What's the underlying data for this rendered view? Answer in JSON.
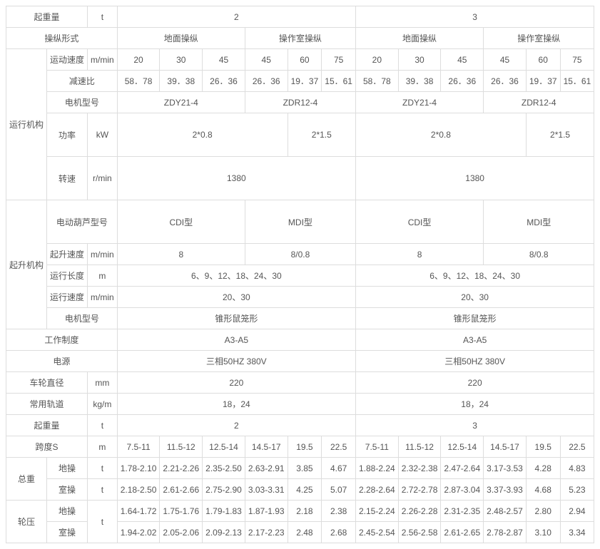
{
  "header": {
    "r1": {
      "c1": "起重量",
      "c2": "t",
      "c3": "2",
      "c4": "3"
    },
    "r2": {
      "c1": "操纵形式",
      "g1": "地面操纵",
      "g2": "操作室操纵",
      "g3": "地面操纵",
      "g4": "操作室操纵"
    }
  },
  "run": {
    "group": "运行机构",
    "speed_label": "运动速度",
    "speed_unit": "m/min",
    "speed": [
      "20",
      "30",
      "45",
      "45",
      "60",
      "75",
      "20",
      "30",
      "45",
      "45",
      "60",
      "75"
    ],
    "gear_label": "减速比",
    "gear": [
      "58．78",
      "39．38",
      "26．36",
      "26．36",
      "19．37",
      "15．61",
      "58．78",
      "39．38",
      "26．36",
      "26．36",
      "19．37",
      "15．61"
    ],
    "motor_label": "电机型号",
    "motor": [
      "ZDY21-4",
      "ZDR12-4",
      "ZDY21-4",
      "ZDR12-4"
    ],
    "kw_label": "功率",
    "kw_unit": "kW",
    "kw": [
      "2*0.8",
      "2*1.5",
      "2*0.8",
      "2*1.5"
    ],
    "rpm_label": "转速",
    "rpm_unit": "r/min",
    "rpm": [
      "1380",
      "1380"
    ]
  },
  "hoist": {
    "group": "起升机构",
    "type_label": "电动葫芦型号",
    "type": [
      "CDI型",
      "MDI型",
      "CDI型",
      "MDI型"
    ],
    "liftspd_label": "起升速度",
    "liftspd_unit": "m/min",
    "liftspd": [
      "8",
      "8/0.8",
      "8",
      "8/0.8"
    ],
    "runlen_label": "运行长度",
    "runlen_unit": "m",
    "runlen": [
      "6、9、12、18、24、30",
      "6、9、12、18、24、30"
    ],
    "runspd_label": "运行速度",
    "runspd_unit": "m/min",
    "runspd": [
      "20、30",
      "20、30"
    ],
    "motor_label": "电机型号",
    "motor": [
      "锥形鼠笼形",
      "锥形鼠笼形"
    ]
  },
  "misc": {
    "duty_label": "工作制度",
    "duty": [
      "A3-A5",
      "A3-A5"
    ],
    "power_label": "电源",
    "power": [
      "三相50HZ 380V",
      "三相50HZ 380V"
    ],
    "wheel_label": "车轮直径",
    "wheel_unit": "mm",
    "wheel": [
      "220",
      "220"
    ],
    "rail_label": "常用轨道",
    "rail_unit": "kg/m",
    "rail": [
      "18，24",
      "18，24"
    ],
    "cap_label": "起重量",
    "cap_unit": "t",
    "cap": [
      "2",
      "3"
    ],
    "span_label": "跨度S",
    "span_unit": "m",
    "span": [
      "7.5-11",
      "11.5-12",
      "12.5-14",
      "14.5-17",
      "19.5",
      "22.5",
      "7.5-11",
      "11.5-12",
      "12.5-14",
      "14.5-17",
      "19.5",
      "22.5"
    ]
  },
  "weight": {
    "group": "总重",
    "ground": "地操",
    "cabin": "室操",
    "unit": "t",
    "g": [
      "1.78-2.10",
      "2.21-2.26",
      "2.35-2.50",
      "2.63-2.91",
      "3.85",
      "4.67",
      "1.88-2.24",
      "2.32-2.38",
      "2.47-2.64",
      "3.17-3.53",
      "4.28",
      "4.83"
    ],
    "c": [
      "2.18-2.50",
      "2.61-2.66",
      "2.75-2.90",
      "3.03-3.31",
      "4.25",
      "5.07",
      "2.28-2.64",
      "2.72-2.78",
      "2.87-3.04",
      "3.37-3.93",
      "4.68",
      "5.23"
    ]
  },
  "press": {
    "group": "轮压",
    "ground": "地操",
    "cabin": "室操",
    "unit": "t",
    "g": [
      "1.64-1.72",
      "1.75-1.76",
      "1.79-1.83",
      "1.87-1.93",
      "2.18",
      "2.38",
      "2.15-2.24",
      "2.26-2.28",
      "2.31-2.35",
      "2.48-2.57",
      "2.80",
      "2.94"
    ],
    "c": [
      "1.94-2.02",
      "2.05-2.06",
      "2.09-2.13",
      "2.17-2.23",
      "2.48",
      "2.68",
      "2.45-2.54",
      "2.56-2.58",
      "2.61-2.65",
      "2.78-2.87",
      "3.10",
      "3.34"
    ]
  }
}
